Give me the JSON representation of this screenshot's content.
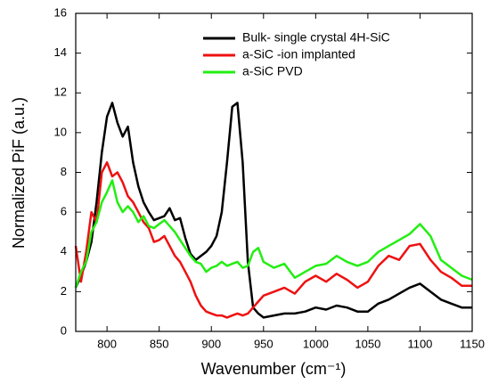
{
  "chart_data": {
    "type": "line",
    "x_label": "Wavenumber (cm⁻¹)",
    "y_label": "Normalized PiF (a.u.)",
    "x": [
      770,
      775,
      780,
      785,
      790,
      795,
      800,
      805,
      810,
      815,
      820,
      825,
      830,
      835,
      840,
      845,
      850,
      855,
      860,
      865,
      870,
      875,
      880,
      885,
      890,
      895,
      900,
      905,
      910,
      915,
      920,
      925,
      930,
      935,
      940,
      945,
      950,
      960,
      970,
      980,
      990,
      1000,
      1010,
      1020,
      1030,
      1040,
      1050,
      1060,
      1070,
      1080,
      1090,
      1100,
      1110,
      1120,
      1130,
      1140,
      1150
    ],
    "series": [
      {
        "name": "Bulk- single crystal 4H-SiC",
        "color": "#000000",
        "values": [
          2.2,
          2.8,
          3.5,
          4.5,
          6.5,
          9,
          10.8,
          11.5,
          10.5,
          9.8,
          10.3,
          8.5,
          7.3,
          6.5,
          6.0,
          5.6,
          5.7,
          5.8,
          6.2,
          5.6,
          5.7,
          4.7,
          3.9,
          3.6,
          3.8,
          4.0,
          4.3,
          4.8,
          6.0,
          8.5,
          11.3,
          11.5,
          8.5,
          3.5,
          1.2,
          0.9,
          0.7,
          0.8,
          0.9,
          0.9,
          1.0,
          1.2,
          1.1,
          1.3,
          1.2,
          1.0,
          1.0,
          1.4,
          1.6,
          1.9,
          2.2,
          2.4,
          2.0,
          1.6,
          1.4,
          1.2,
          1.2
        ]
      },
      {
        "name": "a-SiC -ion implanted",
        "color": "#ee1111",
        "values": [
          4.3,
          2.5,
          4,
          6,
          5.5,
          8,
          8.5,
          7.8,
          8,
          7.5,
          6.8,
          6.5,
          6,
          5.5,
          5.2,
          4.5,
          4.6,
          4.8,
          4.3,
          3.8,
          3.5,
          3.0,
          2.5,
          1.8,
          1.3,
          1.0,
          0.9,
          0.8,
          0.8,
          0.7,
          0.8,
          0.9,
          0.8,
          0.9,
          1.2,
          1.5,
          1.8,
          2.0,
          2.2,
          1.9,
          2.5,
          2.8,
          2.5,
          2.9,
          2.6,
          2.2,
          2.5,
          3.3,
          3.8,
          3.6,
          4.3,
          4.4,
          3.6,
          3.0,
          2.7,
          2.3,
          2.3
        ]
      },
      {
        "name": "a-SiC PVD",
        "color": "#22ee11",
        "values": [
          2.2,
          3.0,
          3.5,
          5.0,
          5.5,
          6.5,
          7.0,
          7.6,
          6.5,
          6.0,
          6.3,
          6.0,
          5.5,
          5.8,
          5.3,
          5.2,
          5.4,
          5.6,
          5.3,
          5.0,
          4.6,
          4.2,
          3.8,
          3.5,
          3.4,
          3.0,
          3.2,
          3.3,
          3.5,
          3.3,
          3.4,
          3.5,
          3.2,
          3.3,
          4.0,
          4.2,
          3.5,
          3.2,
          3.4,
          2.7,
          3.0,
          3.3,
          3.4,
          3.8,
          3.5,
          3.3,
          3.5,
          4.0,
          4.3,
          4.6,
          4.9,
          5.4,
          4.8,
          3.6,
          3.2,
          2.8,
          2.6
        ]
      }
    ],
    "xlim": [
      770,
      1150
    ],
    "xticks": [
      800,
      850,
      900,
      950,
      1000,
      1050,
      1100,
      1150
    ],
    "ylim": [
      0,
      16
    ],
    "yticks": [
      0,
      2,
      4,
      6,
      8,
      10,
      12,
      14,
      16
    ],
    "legend": "upper-right"
  }
}
